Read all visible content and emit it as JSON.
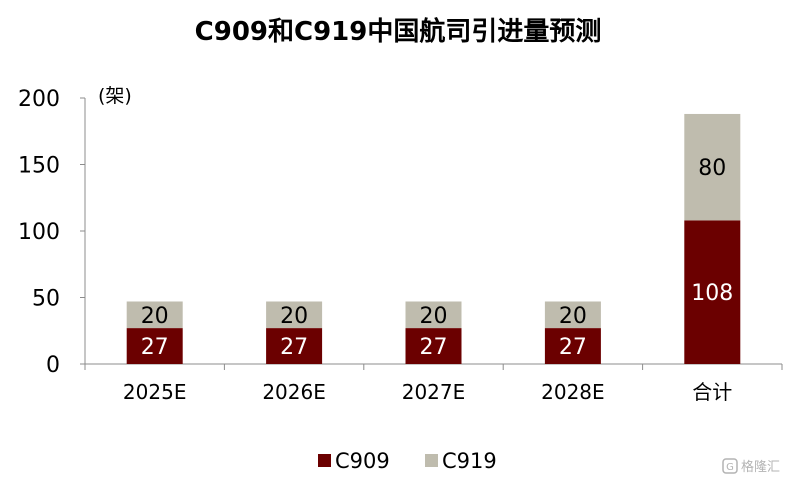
{
  "chart_data": {
    "type": "bar",
    "stacked": true,
    "title": "C909和C919中国航司引进量预测",
    "unit_label": "(架)",
    "categories": [
      "2025E",
      "2026E",
      "2027E",
      "2028E",
      "合计"
    ],
    "series": [
      {
        "name": "C909",
        "values": [
          27,
          27,
          27,
          27,
          108
        ],
        "color": "#6b0000",
        "label_color": "#ffffff"
      },
      {
        "name": "C919",
        "values": [
          20,
          20,
          20,
          20,
          80
        ],
        "color": "#bfbcae",
        "label_color": "#000000"
      }
    ],
    "ylim": [
      0,
      200
    ],
    "yticks": [
      0,
      50,
      100,
      150,
      200
    ],
    "grid": false,
    "legend_position": "bottom"
  },
  "watermark": {
    "icon": "gelonghui-logo-icon",
    "text": "格隆汇"
  }
}
